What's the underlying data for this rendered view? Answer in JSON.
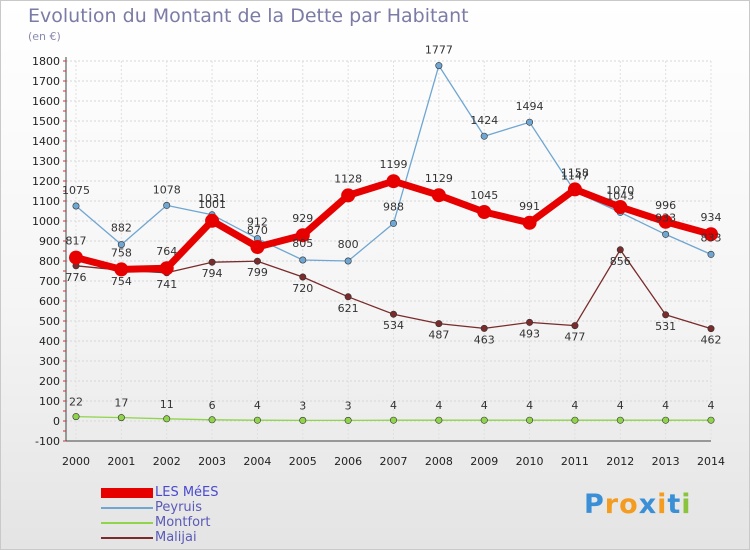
{
  "header": {
    "title": "Evolution du Montant de la Dette par Habitant",
    "subtitle": "(en €)"
  },
  "logo": {
    "letters": [
      "P",
      "r",
      "o",
      "x",
      "i",
      "t",
      "i"
    ],
    "colors": [
      "#3a8fd6",
      "#f39c1f",
      "#f39c1f",
      "#3a8fd6",
      "#f39c1f",
      "#3a8fd6",
      "#8ac43f"
    ]
  },
  "chart_data": {
    "type": "line",
    "title": "Evolution du Montant de la Dette par Habitant",
    "subtitle": "(en €)",
    "xlabel": "",
    "ylabel": "",
    "categories": [
      "2000",
      "2001",
      "2002",
      "2003",
      "2004",
      "2005",
      "2006",
      "2007",
      "2008",
      "2009",
      "2010",
      "2011",
      "2012",
      "2013",
      "2014"
    ],
    "ylim": [
      -100,
      1800
    ],
    "yticks": [
      -100,
      0,
      100,
      200,
      300,
      400,
      500,
      600,
      700,
      800,
      900,
      1000,
      1100,
      1200,
      1300,
      1400,
      1500,
      1600,
      1700,
      1800
    ],
    "grid": true,
    "legend": "bottom-left",
    "series": [
      {
        "name": "LES MéES",
        "color": "#e60000",
        "values": [
          817,
          758,
          764,
          1001,
          870,
          929,
          1128,
          1199,
          1129,
          1045,
          991,
          1158,
          1070,
          996,
          934
        ]
      },
      {
        "name": "Peyruis",
        "color": "#6fa6d2",
        "values": [
          1075,
          882,
          1078,
          1031,
          912,
          805,
          800,
          988,
          1777,
          1424,
          1494,
          1147,
          1043,
          933,
          833
        ]
      },
      {
        "name": "Montfort",
        "color": "#8fd44a",
        "values": [
          22,
          17,
          11,
          6,
          4,
          3,
          3,
          4,
          4,
          4,
          4,
          4,
          4,
          4,
          4
        ]
      },
      {
        "name": "Malijai",
        "color": "#7a2b2b",
        "values": [
          776,
          754,
          741,
          794,
          799,
          720,
          621,
          534,
          487,
          463,
          493,
          477,
          856,
          531,
          462
        ]
      }
    ]
  }
}
